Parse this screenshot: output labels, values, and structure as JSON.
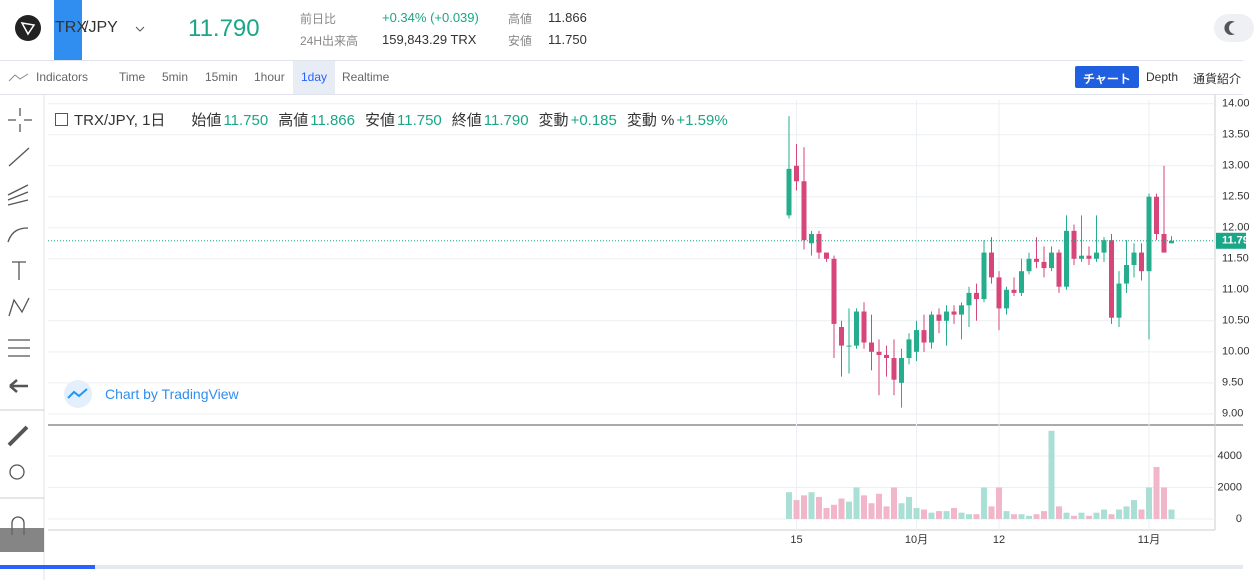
{
  "header": {
    "pair_base": "TRX",
    "pair_quote": "/JPY",
    "last_price": "11.790",
    "stats": [
      {
        "label": "前日比",
        "value": "+0.34% (+0.039)"
      },
      {
        "label": "24H出来高",
        "value": "159,843.29 TRX"
      },
      {
        "label": "高値",
        "value": "11.866"
      },
      {
        "label": "安値",
        "value": "11.750"
      }
    ]
  },
  "toolbar": {
    "indicators": "Indicators",
    "intervals": [
      "Time",
      "5min",
      "15min",
      "1hour",
      "1day",
      "Realtime"
    ],
    "active_interval": 4,
    "tabs": [
      "チャート",
      "Depth",
      "通貨紹介"
    ],
    "active_tab": 0
  },
  "legend": {
    "symbol": "TRX/JPY, 1日",
    "items": [
      {
        "label": "始値",
        "value": "11.750"
      },
      {
        "label": "高値",
        "value": "11.866"
      },
      {
        "label": "安値",
        "value": "11.750"
      },
      {
        "label": "終値",
        "value": "11.790"
      },
      {
        "label": "変動",
        "value": "+0.185"
      },
      {
        "label": "変動 %",
        "value": "+1.59%"
      }
    ]
  },
  "watermark": "Chart by TradingView",
  "chart_data": {
    "type": "candlestick",
    "up_color": "#26ad8e",
    "down_color": "#d6467a",
    "up_volume_color": "#a9dfd4",
    "down_volume_color": "#f1b6c9",
    "categories": [
      null,
      "15",
      null,
      null,
      null,
      null,
      null,
      null,
      null,
      null,
      null,
      null,
      null,
      null,
      null,
      null,
      null,
      "10月",
      null,
      null,
      null,
      null,
      null,
      null,
      null,
      null,
      null,
      null,
      "12",
      null,
      null,
      null,
      null,
      null,
      null,
      null,
      null,
      null,
      null,
      null,
      null,
      null,
      null,
      null,
      null,
      null,
      null,
      null,
      "11月",
      null,
      null,
      null
    ],
    "open": [
      12.2,
      13.0,
      12.75,
      11.75,
      11.9,
      11.6,
      11.5,
      10.4,
      10.1,
      10.1,
      10.65,
      10.15,
      10.0,
      9.95,
      9.9,
      9.5,
      9.9,
      10.0,
      10.35,
      10.15,
      10.6,
      10.5,
      10.65,
      10.6,
      10.75,
      10.95,
      10.85,
      11.6,
      11.2,
      10.7,
      11.0,
      10.95,
      11.3,
      11.5,
      11.45,
      11.35,
      11.6,
      11.05,
      11.95,
      11.5,
      11.55,
      11.5,
      11.6,
      11.8,
      10.55,
      11.1,
      11.4,
      11.6,
      11.3,
      12.5,
      11.9,
      11.75
    ],
    "high": [
      13.8,
      13.35,
      13.3,
      11.95,
      11.95,
      11.6,
      11.55,
      10.5,
      10.7,
      10.7,
      10.8,
      10.6,
      10.2,
      10.1,
      10.2,
      10.05,
      10.3,
      10.5,
      10.6,
      10.65,
      10.7,
      10.75,
      10.75,
      10.8,
      11.05,
      11.1,
      11.8,
      11.85,
      11.3,
      11.05,
      11.2,
      11.5,
      11.6,
      11.85,
      11.7,
      11.7,
      11.65,
      12.2,
      12.05,
      12.2,
      11.7,
      12.2,
      11.85,
      11.9,
      11.3,
      11.8,
      11.75,
      11.75,
      12.55,
      12.55,
      13.0,
      11.866
    ],
    "low": [
      12.15,
      12.6,
      11.65,
      11.55,
      11.5,
      11.45,
      9.9,
      9.6,
      9.65,
      10.05,
      10.05,
      9.7,
      9.3,
      9.6,
      9.3,
      9.1,
      9.8,
      9.85,
      10.0,
      10.05,
      10.3,
      10.1,
      10.45,
      10.2,
      10.4,
      10.5,
      10.8,
      11.1,
      10.35,
      10.6,
      10.9,
      10.9,
      11.25,
      11.35,
      11.2,
      11.3,
      10.95,
      11.0,
      11.4,
      11.45,
      11.4,
      11.45,
      11.45,
      10.45,
      10.4,
      10.95,
      11.2,
      11.15,
      10.2,
      11.8,
      11.6,
      11.75
    ],
    "close": [
      12.95,
      12.75,
      11.8,
      11.9,
      11.6,
      11.5,
      10.45,
      10.1,
      10.1,
      10.65,
      10.15,
      10.0,
      9.95,
      9.9,
      9.55,
      9.9,
      10.2,
      10.35,
      10.15,
      10.6,
      10.5,
      10.65,
      10.6,
      10.75,
      10.95,
      10.85,
      11.6,
      11.2,
      10.7,
      11.0,
      10.95,
      11.3,
      11.5,
      11.45,
      11.35,
      11.6,
      11.05,
      11.95,
      11.5,
      11.55,
      11.5,
      11.6,
      11.8,
      10.55,
      11.1,
      11.4,
      11.6,
      11.3,
      12.5,
      11.9,
      11.6,
      11.79
    ],
    "volume": [
      1700,
      1200,
      1500,
      1700,
      1400,
      700,
      900,
      1300,
      1100,
      2000,
      1500,
      1000,
      1600,
      800,
      2000,
      1000,
      1400,
      700,
      600,
      400,
      500,
      500,
      700,
      400,
      300,
      300,
      2000,
      800,
      2000,
      500,
      300,
      300,
      200,
      300,
      500,
      5600,
      800,
      400,
      200,
      400,
      200,
      400,
      600,
      300,
      600,
      800,
      1200,
      600,
      2000,
      3300,
      2000,
      600
    ],
    "ylim": [
      8.82,
      14.06
    ],
    "yticks": [
      {
        "value": 14,
        "label": "14.00"
      },
      {
        "value": 13.5,
        "label": "13.50"
      },
      {
        "value": 13,
        "label": "13.00"
      },
      {
        "value": 12.5,
        "label": "12.50"
      },
      {
        "value": 12,
        "label": "12.00"
      },
      {
        "value": 11.5,
        "label": "11.50"
      },
      {
        "value": 11,
        "label": "11.00"
      },
      {
        "value": 10.5,
        "label": "10.50"
      },
      {
        "value": 10,
        "label": "10.00"
      },
      {
        "value": 9.5,
        "label": "9.50"
      },
      {
        "value": 9,
        "label": "9.00"
      }
    ],
    "y2lim": [
      -700,
      5840
    ],
    "y2ticks": [
      4000,
      2000,
      0
    ],
    "last": {
      "value": 11.79,
      "label": "11.790"
    },
    "grid": true
  }
}
